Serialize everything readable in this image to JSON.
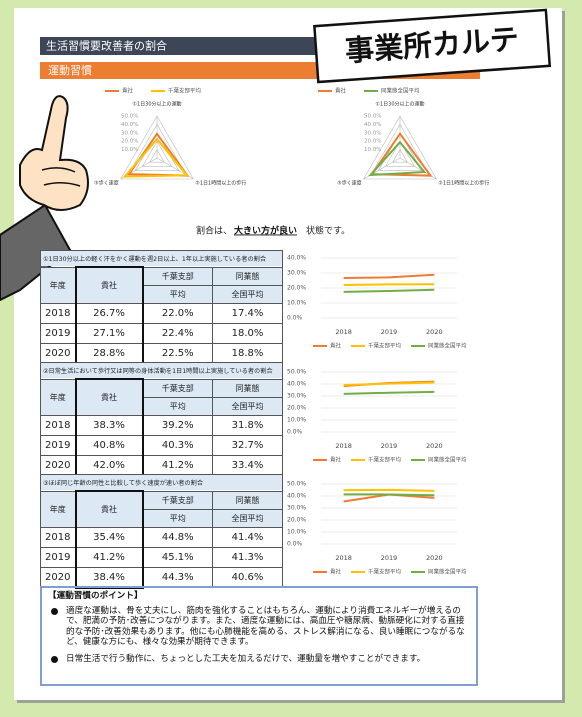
{
  "header": {
    "title": "生活習慣要改善者の割合",
    "section": "運動習慣",
    "stamp": "事業所カルテ"
  },
  "note": {
    "before": "割合は、",
    "emphasis": "大きい方が良い",
    "after": "状態です。"
  },
  "tables": [
    {
      "title": "①1日30分以上の軽く汗をかく運動を週2日以上、1年以上実施している者の割合",
      "header": [
        [
          "年度"
        ],
        [
          "貴社"
        ],
        [
          "千葉支部",
          "平均"
        ],
        [
          "同業態",
          "全国平均"
        ]
      ],
      "rows": [
        [
          "2018",
          "26.7%",
          "22.0%",
          "17.4%"
        ],
        [
          "2019",
          "27.1%",
          "22.4%",
          "18.0%"
        ],
        [
          "2020",
          "28.8%",
          "22.5%",
          "18.8%"
        ]
      ]
    },
    {
      "title": "②日常生活において歩行又は同等の身体活動を1日1時間以上実施している者の割合",
      "header": [
        [
          "年度"
        ],
        [
          "貴社"
        ],
        [
          "千葉支部",
          "平均"
        ],
        [
          "同業態",
          "全国平均"
        ]
      ],
      "rows": [
        [
          "2018",
          "38.3%",
          "39.2%",
          "31.8%"
        ],
        [
          "2019",
          "40.8%",
          "40.3%",
          "32.7%"
        ],
        [
          "2020",
          "42.0%",
          "41.2%",
          "33.4%"
        ]
      ]
    },
    {
      "title": "③ほぼ同じ年齢の同性と比較して歩く速度が速い者の割合",
      "header": [
        [
          "年度"
        ],
        [
          "貴社"
        ],
        [
          "千葉支部",
          "平均"
        ],
        [
          "同業態",
          "全国平均"
        ]
      ],
      "rows": [
        [
          "2018",
          "35.4%",
          "44.8%",
          "41.4%"
        ],
        [
          "2019",
          "41.2%",
          "45.1%",
          "41.3%"
        ],
        [
          "2020",
          "38.4%",
          "44.3%",
          "40.6%"
        ]
      ]
    }
  ],
  "chart_data": [
    {
      "type": "radar",
      "axes": [
        "①1日30分以上の運動",
        "②1日1時間以上の歩行",
        "③歩く速度"
      ],
      "rlim": [
        0,
        50
      ],
      "rticks": [
        {
          "value": 10,
          "label": "10.0%"
        },
        {
          "value": 20,
          "label": "20.0%"
        },
        {
          "value": 30,
          "label": "30.0%"
        },
        {
          "value": 40,
          "label": "40.0%"
        },
        {
          "value": 50,
          "label": "50.0%"
        }
      ],
      "series": [
        {
          "name": "貴社",
          "color": "#ed7d31",
          "values": [
            28.8,
            42.0,
            38.4
          ]
        },
        {
          "name": "千葉支部平均",
          "color": "#ffc000",
          "values": [
            22.5,
            41.2,
            44.3
          ]
        }
      ]
    },
    {
      "type": "radar",
      "axes": [
        "①1日30分以上の運動",
        "②1日1時間以上の歩行",
        "③歩く速度"
      ],
      "rlim": [
        0,
        50
      ],
      "rticks": [
        {
          "value": 10,
          "label": "10.0%"
        },
        {
          "value": 20,
          "label": "20.0%"
        },
        {
          "value": 30,
          "label": "30.0%"
        },
        {
          "value": 40,
          "label": "40.0%"
        },
        {
          "value": 50,
          "label": "50.0%"
        }
      ],
      "series": [
        {
          "name": "貴社",
          "color": "#ed7d31",
          "values": [
            28.8,
            42.0,
            38.4
          ]
        },
        {
          "name": "同業態全国平均",
          "color": "#70ad47",
          "values": [
            18.8,
            33.4,
            40.6
          ]
        }
      ]
    },
    {
      "type": "line",
      "categories": [
        "2018",
        "2019",
        "2020"
      ],
      "ylim": [
        0,
        40
      ],
      "yticks": [
        {
          "value": 0,
          "label": "0.0%"
        },
        {
          "value": 10,
          "label": "10.0%"
        },
        {
          "value": 20,
          "label": "20.0%"
        },
        {
          "value": 30,
          "label": "30.0%"
        },
        {
          "value": 40,
          "label": "40.0%"
        }
      ],
      "grid": true,
      "series": [
        {
          "name": "貴社",
          "color": "#ed7d31",
          "values": [
            26.7,
            27.1,
            28.8
          ]
        },
        {
          "name": "千葉支部平均",
          "color": "#ffc000",
          "values": [
            22.0,
            22.4,
            22.5
          ]
        },
        {
          "name": "同業態全国平均",
          "color": "#70ad47",
          "values": [
            17.4,
            18.0,
            18.8
          ]
        }
      ]
    },
    {
      "type": "line",
      "categories": [
        "2018",
        "2019",
        "2020"
      ],
      "ylim": [
        0,
        50
      ],
      "yticks": [
        {
          "value": 0,
          "label": "0.0%"
        },
        {
          "value": 10,
          "label": "10.0%"
        },
        {
          "value": 20,
          "label": "20.0%"
        },
        {
          "value": 30,
          "label": "30.0%"
        },
        {
          "value": 40,
          "label": "40.0%"
        },
        {
          "value": 50,
          "label": "50.0%"
        }
      ],
      "grid": true,
      "series": [
        {
          "name": "貴社",
          "color": "#ed7d31",
          "values": [
            38.3,
            40.8,
            42.0
          ]
        },
        {
          "name": "千葉支部平均",
          "color": "#ffc000",
          "values": [
            39.2,
            40.3,
            41.2
          ]
        },
        {
          "name": "同業態全国平均",
          "color": "#70ad47",
          "values": [
            31.8,
            32.7,
            33.4
          ]
        }
      ]
    },
    {
      "type": "line",
      "categories": [
        "2018",
        "2019",
        "2020"
      ],
      "ylim": [
        0,
        50
      ],
      "yticks": [
        {
          "value": 0,
          "label": "0.0%"
        },
        {
          "value": 10,
          "label": "10.0%"
        },
        {
          "value": 20,
          "label": "20.0%"
        },
        {
          "value": 30,
          "label": "30.0%"
        },
        {
          "value": 40,
          "label": "40.0%"
        },
        {
          "value": 50,
          "label": "50.0%"
        }
      ],
      "grid": true,
      "series": [
        {
          "name": "貴社",
          "color": "#ed7d31",
          "values": [
            35.4,
            41.2,
            38.4
          ]
        },
        {
          "name": "千葉支部平均",
          "color": "#ffc000",
          "values": [
            44.8,
            45.1,
            44.3
          ]
        },
        {
          "name": "同業態全国平均",
          "color": "#70ad47",
          "values": [
            41.4,
            41.3,
            40.6
          ]
        }
      ]
    }
  ],
  "points": {
    "title": "【運動習慣のポイント】",
    "items": [
      "適度な運動は、骨を丈夫にし、筋肉を強化することはもちろん、運動により消費エネルギーが増えるので、肥満の予防･改善につながります。また、適度な運動には、高血圧や糖尿病、動脈硬化に対する直接的な予防･改善効果もあります。他にも心肺機能を高める、ストレス解消になる、良い睡眠につながるなど、健康な方にも、様々な効果が期待できます。",
      "日常生活で行う動作に、ちょっとした工夫を加えるだけで、運動量を増やすことができます。"
    ]
  }
}
